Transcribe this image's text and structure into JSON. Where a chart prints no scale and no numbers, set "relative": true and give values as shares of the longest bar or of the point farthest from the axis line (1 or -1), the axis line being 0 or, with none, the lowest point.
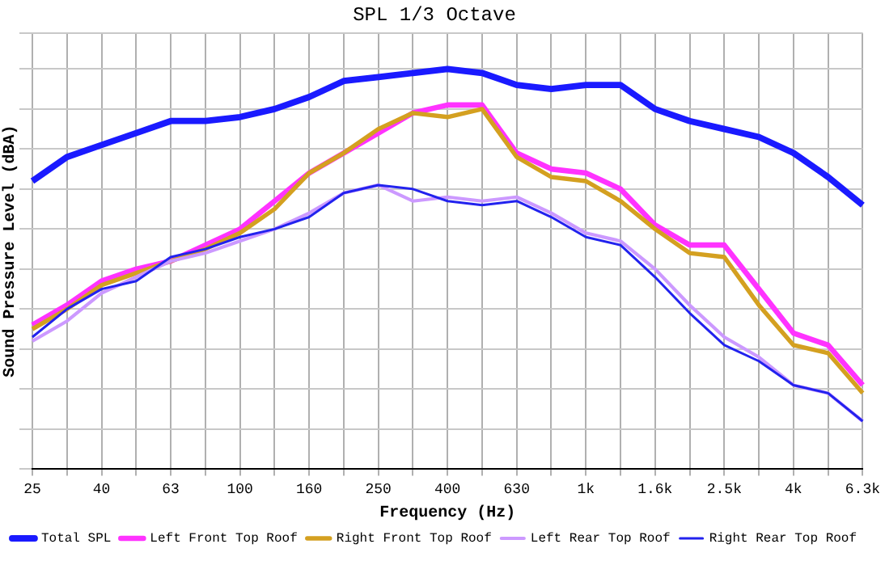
{
  "chart_data": {
    "type": "line",
    "title": "SPL 1/3 Octave",
    "xlabel": "Frequency (Hz)",
    "ylabel": "Sound Pressure Level (dBA)",
    "relative": true,
    "grid": true,
    "legend": "bottom",
    "marker": "none",
    "line_style": "solid",
    "categories": [
      "25",
      null,
      "40",
      null,
      "63",
      null,
      "100",
      null,
      "160",
      null,
      "250",
      null,
      "400",
      null,
      "630",
      null,
      "1k",
      null,
      "1.6k",
      null,
      "2.5k",
      null,
      "4k",
      null,
      "6.3k"
    ],
    "series": [
      {
        "name": "Total SPL",
        "color": "#1a1aff",
        "values": [
          0.72,
          0.78,
          0.81,
          0.84,
          0.87,
          0.87,
          0.88,
          0.9,
          0.93,
          0.97,
          0.98,
          0.99,
          1,
          0.99,
          0.96,
          0.95,
          0.96,
          0.96,
          0.9,
          0.87,
          0.85,
          0.83,
          0.79,
          0.73,
          0.66
        ]
      },
      {
        "name": "Left Front Top Roof",
        "color": "#ff33ff",
        "values": [
          0.36,
          0.41,
          0.47,
          0.5,
          0.52,
          0.56,
          0.6,
          0.67,
          0.74,
          0.79,
          0.84,
          0.89,
          0.91,
          0.91,
          0.79,
          0.75,
          0.74,
          0.7,
          0.61,
          0.56,
          0.56,
          0.45,
          0.34,
          0.31,
          0.21
        ]
      },
      {
        "name": "Right Front Top Roof",
        "color": "#d4a020",
        "values": [
          0.35,
          0.4,
          0.46,
          0.49,
          0.52,
          0.55,
          0.59,
          0.65,
          0.74,
          0.79,
          0.85,
          0.89,
          0.88,
          0.9,
          0.78,
          0.73,
          0.72,
          0.67,
          0.6,
          0.54,
          0.53,
          0.41,
          0.31,
          0.29,
          0.19
        ]
      },
      {
        "name": "Left Rear Top Roof",
        "color": "#cc99ff",
        "values": [
          0.32,
          0.37,
          0.44,
          0.48,
          0.52,
          0.54,
          0.57,
          0.6,
          0.64,
          0.69,
          0.71,
          0.67,
          0.68,
          0.67,
          0.68,
          0.64,
          0.59,
          0.57,
          0.5,
          0.41,
          0.33,
          0.28,
          0.21,
          0.19,
          0.12
        ]
      },
      {
        "name": "Right Rear Top Roof",
        "color": "#2222ee",
        "values": [
          0.33,
          0.4,
          0.45,
          0.47,
          0.53,
          0.55,
          0.58,
          0.6,
          0.63,
          0.69,
          0.71,
          0.7,
          0.67,
          0.66,
          0.67,
          0.63,
          0.58,
          0.56,
          0.48,
          0.39,
          0.31,
          0.27,
          0.21,
          0.19,
          0.12
        ]
      }
    ]
  }
}
